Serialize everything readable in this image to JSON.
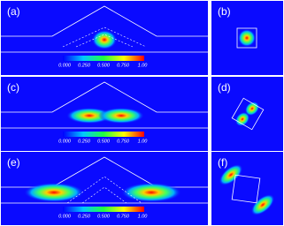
{
  "panels": [
    {
      "label": "(a)"
    },
    {
      "label": "(b)"
    },
    {
      "label": "(c)"
    },
    {
      "label": "(d)"
    },
    {
      "label": "(e)"
    },
    {
      "label": "(f)"
    }
  ],
  "colorbar_ticks": [
    "0.000",
    "0.250",
    "0.500",
    "0.750",
    "1.00"
  ]
}
